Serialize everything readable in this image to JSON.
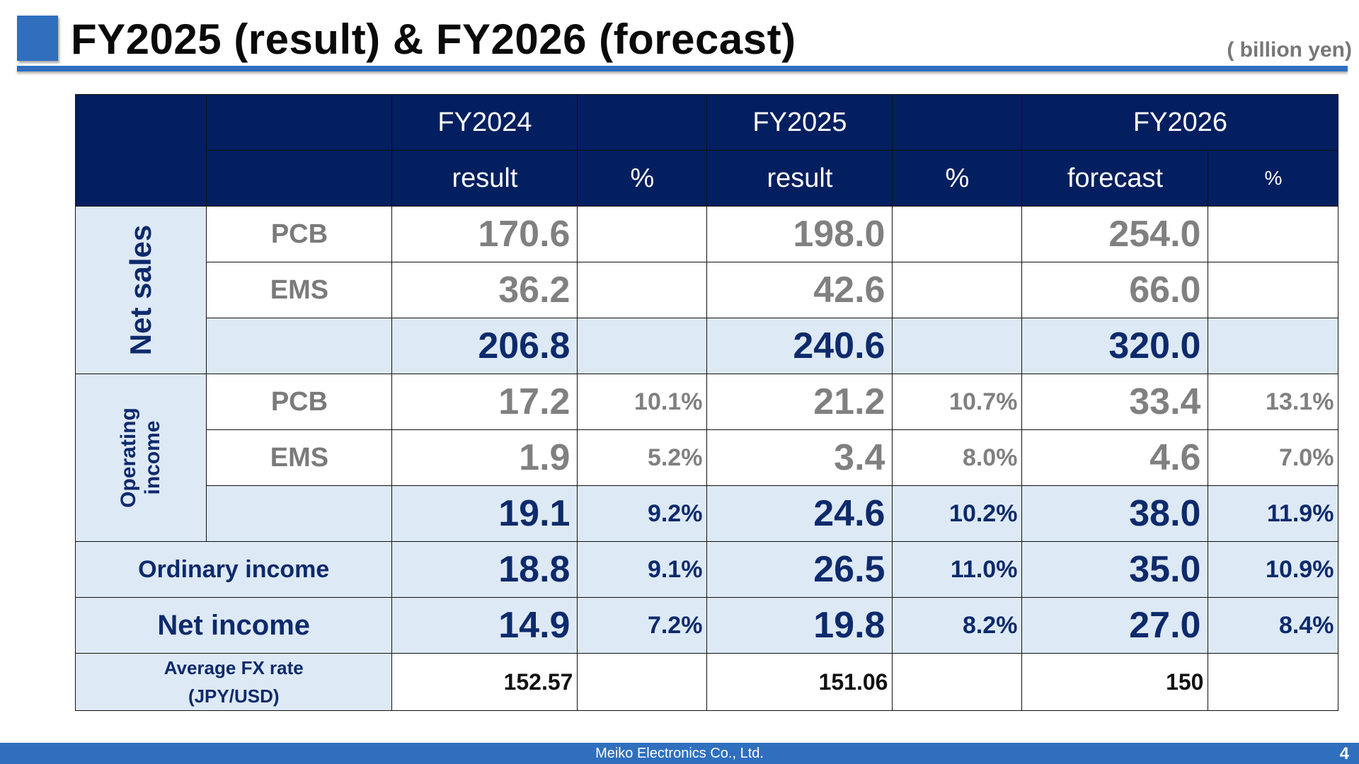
{
  "slide": {
    "title": "FY2025 (result) & FY2026 (forecast)",
    "unit": "( billion yen)",
    "footer_company": "Meiko Electronics Co., Ltd.",
    "page_number": "4"
  },
  "table": {
    "header_years": [
      "FY2024",
      "FY2025",
      "FY2026"
    ],
    "header_subs": [
      "result",
      "%",
      "result",
      "%",
      "forecast",
      "%"
    ],
    "groups": {
      "net_sales": "Net sales",
      "operating_income": "Operating income"
    },
    "rows": {
      "ns_pcb": {
        "label": "PCB",
        "values": [
          "170.6",
          "",
          "198.0",
          "",
          "254.0",
          ""
        ]
      },
      "ns_ems": {
        "label": "EMS",
        "values": [
          "36.2",
          "",
          "42.6",
          "",
          "66.0",
          ""
        ]
      },
      "ns_total": {
        "label": "",
        "values": [
          "206.8",
          "",
          "240.6",
          "",
          "320.0",
          ""
        ]
      },
      "oi_pcb": {
        "label": "PCB",
        "values": [
          "17.2",
          "10.1%",
          "21.2",
          "10.7%",
          "33.4",
          "13.1%"
        ]
      },
      "oi_ems": {
        "label": "EMS",
        "values": [
          "1.9",
          "5.2%",
          "3.4",
          "8.0%",
          "4.6",
          "7.0%"
        ]
      },
      "oi_total": {
        "label": "",
        "values": [
          "19.1",
          "9.2%",
          "24.6",
          "10.2%",
          "38.0",
          "11.9%"
        ]
      },
      "ordinary": {
        "label": "Ordinary income",
        "values": [
          "18.8",
          "9.1%",
          "26.5",
          "11.0%",
          "35.0",
          "10.9%"
        ]
      },
      "net_income": {
        "label": "Net income",
        "values": [
          "14.9",
          "7.2%",
          "19.8",
          "8.2%",
          "27.0",
          "8.4%"
        ]
      },
      "fx": {
        "label_line1": "Average FX rate",
        "label_line2": "(JPY/USD)",
        "values": [
          "152.57",
          "",
          "151.06",
          "",
          "150",
          ""
        ]
      }
    }
  },
  "colors": {
    "header_navy": "#031f5f",
    "accent_blue": "#2f6fbe",
    "row_tint": "#dde9f5",
    "value_navy": "#0d2a6b",
    "value_grey": "#808080"
  }
}
